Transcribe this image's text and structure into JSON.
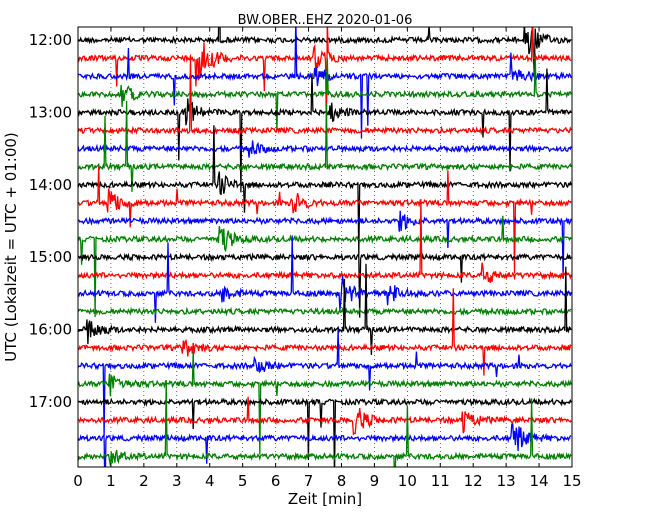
{
  "chart_data": {
    "type": "line",
    "title": "BW.OBER..EHZ 2020-01-06",
    "xlabel": "Zeit  [min]",
    "ylabel": "UTC (Lokalzeit = UTC + 01:00)",
    "xlim": [
      0,
      15
    ],
    "x_ticks": [
      0,
      1,
      2,
      3,
      4,
      5,
      6,
      7,
      8,
      9,
      10,
      11,
      12,
      13,
      14,
      15
    ],
    "y_tick_labels": [
      "12:00",
      "13:00",
      "14:00",
      "15:00",
      "16:00",
      "17:00"
    ],
    "trace_interval_min": 15,
    "first_trace": "12:00",
    "trace_count": 24,
    "trace_colors": [
      "#000000",
      "#ff0000",
      "#0000ff",
      "#008000"
    ],
    "grid": true,
    "events": [
      {
        "trace": 0,
        "t": 13.6,
        "amp": 0.9
      },
      {
        "trace": 1,
        "t": 3.7,
        "amp": 1.0
      },
      {
        "trace": 1,
        "t": 7.2,
        "amp": 0.5
      },
      {
        "trace": 2,
        "t": 7.2,
        "amp": 0.5
      },
      {
        "trace": 2,
        "t": 13.2,
        "amp": 0.5
      },
      {
        "trace": 3,
        "t": 1.3,
        "amp": 0.4
      },
      {
        "trace": 4,
        "t": 3.3,
        "amp": 0.5
      },
      {
        "trace": 4,
        "t": 7.6,
        "amp": 0.4
      },
      {
        "trace": 6,
        "t": 5.2,
        "amp": 0.3
      },
      {
        "trace": 8,
        "t": 4.3,
        "amp": 0.4
      },
      {
        "trace": 9,
        "t": 0.9,
        "amp": 0.6
      },
      {
        "trace": 9,
        "t": 6.5,
        "amp": 0.5
      },
      {
        "trace": 10,
        "t": 9.8,
        "amp": 0.3
      },
      {
        "trace": 11,
        "t": 4.3,
        "amp": 0.6
      },
      {
        "trace": 13,
        "t": 12.3,
        "amp": 0.4
      },
      {
        "trace": 14,
        "t": 4.4,
        "amp": 0.3
      },
      {
        "trace": 14,
        "t": 8.0,
        "amp": 0.6
      },
      {
        "trace": 14,
        "t": 9.4,
        "amp": 0.5
      },
      {
        "trace": 16,
        "t": 0.3,
        "amp": 0.5
      },
      {
        "trace": 17,
        "t": 3.2,
        "amp": 0.4
      },
      {
        "trace": 18,
        "t": 5.4,
        "amp": 0.3
      },
      {
        "trace": 19,
        "t": 1.0,
        "amp": 0.4
      },
      {
        "trace": 21,
        "t": 8.4,
        "amp": 0.6
      },
      {
        "trace": 21,
        "t": 11.7,
        "amp": 0.4
      },
      {
        "trace": 22,
        "t": 13.2,
        "amp": 0.7
      },
      {
        "trace": 23,
        "t": 1.0,
        "amp": 0.3
      }
    ]
  }
}
